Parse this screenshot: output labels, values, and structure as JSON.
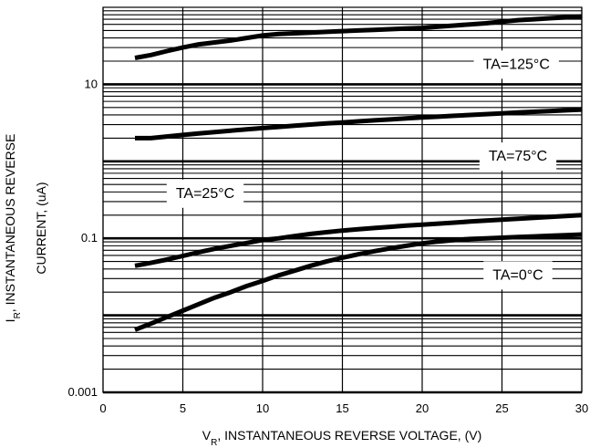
{
  "chart_data": {
    "type": "line",
    "xlabel": {
      "main": "V",
      "sub": "R",
      "rest": ", INSTANTANEOUS REVERSE VOLTAGE, (V)"
    },
    "ylabel": {
      "main": "I",
      "sub": "R",
      "rest": ", INSTANTANEOUS REVERSE",
      "line2": "CURRENT, (uA)"
    },
    "xlim": [
      0,
      30
    ],
    "ylim": [
      0.001,
      100
    ],
    "yscale": "log",
    "x_ticks": [
      {
        "value": 0,
        "label": "0"
      },
      {
        "value": 5,
        "label": "5"
      },
      {
        "value": 10,
        "label": "10"
      },
      {
        "value": 15,
        "label": "15"
      },
      {
        "value": 20,
        "label": "20"
      },
      {
        "value": 25,
        "label": "25"
      },
      {
        "value": 30,
        "label": "30"
      }
    ],
    "y_ticks": [
      {
        "value": 10,
        "label": "10"
      },
      {
        "value": 0.1,
        "label": "0.1"
      },
      {
        "value": 0.001,
        "label": "0.001"
      }
    ],
    "grid": true,
    "series": [
      {
        "name": "TA=125°C",
        "x": [
          2,
          3,
          4,
          5,
          6,
          7,
          8,
          9,
          10,
          11,
          12,
          13,
          14,
          15,
          16,
          17,
          18,
          19,
          20,
          21,
          22,
          23,
          24,
          25,
          26,
          27,
          28,
          29,
          30
        ],
        "y": [
          22,
          24,
          27,
          30,
          33,
          35,
          37,
          40,
          43,
          45,
          46,
          47,
          48,
          49,
          50,
          51,
          52,
          53,
          54,
          56,
          58,
          60,
          62,
          65,
          68,
          70,
          72,
          74,
          76
        ]
      },
      {
        "name": "TA=75°C",
        "x": [
          2,
          3,
          4,
          5,
          6,
          7,
          8,
          9,
          10,
          11,
          12,
          13,
          14,
          15,
          16,
          17,
          18,
          19,
          20,
          21,
          22,
          23,
          24,
          25,
          26,
          27,
          28,
          29,
          30
        ],
        "y": [
          2.0,
          2.0,
          2.1,
          2.2,
          2.3,
          2.4,
          2.5,
          2.6,
          2.7,
          2.8,
          2.9,
          3.0,
          3.1,
          3.2,
          3.3,
          3.4,
          3.5,
          3.6,
          3.7,
          3.8,
          3.9,
          4.0,
          4.1,
          4.2,
          4.3,
          4.4,
          4.5,
          4.6,
          4.7
        ]
      },
      {
        "name": "TA=25°C",
        "x": [
          2,
          3,
          4,
          5,
          6,
          7,
          8,
          9,
          10,
          11,
          12,
          13,
          14,
          15,
          16,
          17,
          18,
          19,
          20,
          21,
          22,
          23,
          24,
          25,
          26,
          27,
          28,
          29,
          30
        ],
        "y": [
          0.044,
          0.048,
          0.053,
          0.059,
          0.066,
          0.073,
          0.08,
          0.087,
          0.095,
          0.1,
          0.107,
          0.114,
          0.12,
          0.126,
          0.131,
          0.136,
          0.141,
          0.146,
          0.15,
          0.155,
          0.16,
          0.165,
          0.17,
          0.175,
          0.18,
          0.185,
          0.19,
          0.195,
          0.2
        ]
      },
      {
        "name": "TA=0°C",
        "x": [
          2,
          3,
          4,
          5,
          6,
          7,
          8,
          9,
          10,
          11,
          12,
          13,
          14,
          15,
          16,
          17,
          18,
          19,
          20,
          21,
          22,
          23,
          24,
          25,
          26,
          27,
          28,
          29,
          30
        ],
        "y": [
          0.0065,
          0.0078,
          0.0095,
          0.0115,
          0.014,
          0.017,
          0.02,
          0.024,
          0.028,
          0.033,
          0.038,
          0.044,
          0.05,
          0.056,
          0.062,
          0.068,
          0.074,
          0.08,
          0.086,
          0.091,
          0.095,
          0.098,
          0.1,
          0.102,
          0.104,
          0.106,
          0.108,
          0.11,
          0.112
        ]
      }
    ]
  }
}
